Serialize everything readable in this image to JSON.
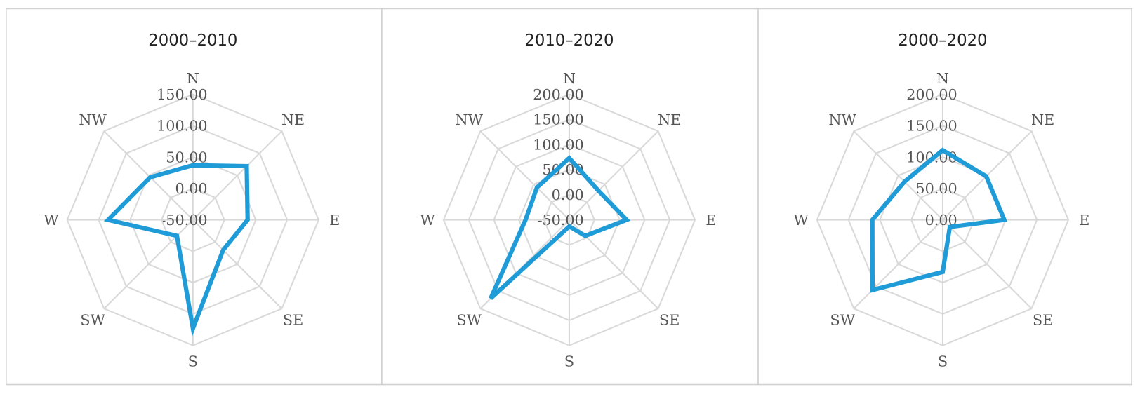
{
  "chart_data": [
    {
      "type": "radar",
      "title": "2000–2010",
      "categories": [
        "N",
        "NE",
        "E",
        "SE",
        "S",
        "SW",
        "W",
        "NW"
      ],
      "values": [
        37,
        71,
        37,
        18,
        123,
        -14,
        85,
        46
      ],
      "color": "#1f9bd7",
      "ylim": [
        -50,
        150
      ],
      "yticks": [
        {
          "value": -50,
          "label": "-50.00"
        },
        {
          "value": 0,
          "label": "0.00"
        },
        {
          "value": 50,
          "label": "50.00"
        },
        {
          "value": 100,
          "label": "100.00"
        },
        {
          "value": 150,
          "label": "150.00"
        }
      ]
    },
    {
      "type": "radar",
      "title": "2010–2020",
      "categories": [
        "N",
        "NE",
        "E",
        "SE",
        "S",
        "SW",
        "W",
        "NW"
      ],
      "values": [
        73,
        32,
        64,
        -5,
        -37,
        171,
        37,
        41
      ],
      "color": "#1f9bd7",
      "ylim": [
        -50,
        200
      ],
      "yticks": [
        {
          "value": -50,
          "label": "-50.00"
        },
        {
          "value": 0,
          "label": "0.00"
        },
        {
          "value": 50,
          "label": "50.00"
        },
        {
          "value": 100,
          "label": "100.00"
        },
        {
          "value": 150,
          "label": "150.00"
        },
        {
          "value": 200,
          "label": "200.00"
        }
      ]
    },
    {
      "type": "radar",
      "title": "2000–2020",
      "categories": [
        "N",
        "NE",
        "E",
        "SE",
        "S",
        "SW",
        "W",
        "NW"
      ],
      "values": [
        111,
        98,
        98,
        16,
        83,
        158,
        112,
        86
      ],
      "color": "#1f9bd7",
      "ylim": [
        0,
        200
      ],
      "yticks": [
        {
          "value": 0,
          "label": "0.00"
        },
        {
          "value": 50,
          "label": "50.00"
        },
        {
          "value": 100,
          "label": "100.00"
        },
        {
          "value": 150,
          "label": "150.00"
        },
        {
          "value": 200,
          "label": "200.00"
        }
      ]
    }
  ]
}
